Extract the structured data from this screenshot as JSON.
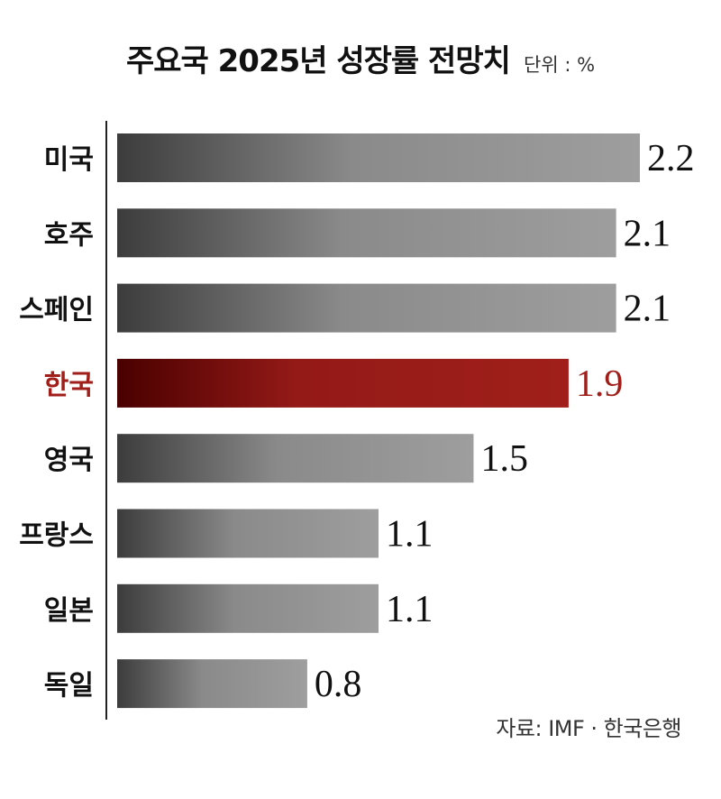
{
  "title": "주요국 2025년 성장률 전망치",
  "unit_note": "단위 : %",
  "source": "자료: IMF · 한국은행",
  "colors": {
    "bar_default_dark": "#3c3c3c",
    "bar_default_light": "#9e9e9e",
    "highlight_dark": "#4a0000",
    "highlight_light": "#a01f1a",
    "highlight_text": "#a01f1a",
    "text": "#111111"
  },
  "chart_data": {
    "type": "bar",
    "orientation": "horizontal",
    "categories": [
      "미국",
      "호주",
      "스페인",
      "한국",
      "영국",
      "프랑스",
      "일본",
      "독일"
    ],
    "values": [
      2.2,
      2.1,
      2.1,
      1.9,
      1.5,
      1.1,
      1.1,
      0.8
    ],
    "highlight": "한국",
    "title": "주요국 2025년 성장률 전망치",
    "unit": "단위 : %",
    "xlim": [
      0,
      2.2
    ],
    "grid": false,
    "legend": "none"
  }
}
